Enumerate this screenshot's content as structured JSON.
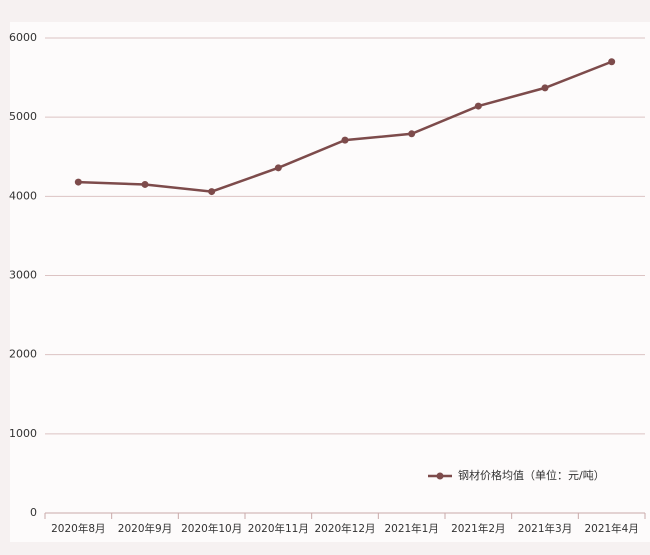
{
  "chart_data": {
    "type": "line",
    "categories": [
      "2020年8月",
      "2020年9月",
      "2020年10月",
      "2020年11月",
      "2020年12月",
      "2021年1月",
      "2021年2月",
      "2021年3月",
      "2021年4月"
    ],
    "series": [
      {
        "name": "钢材价格均值（单位：元/吨）",
        "color": "#7d4b4b",
        "values": [
          4180,
          4150,
          4060,
          4360,
          4710,
          4790,
          5140,
          5370,
          5700
        ]
      }
    ],
    "ylim": [
      0,
      6000
    ],
    "yticks": [
      0,
      1000,
      2000,
      3000,
      4000,
      5000,
      6000
    ],
    "grid": true
  }
}
